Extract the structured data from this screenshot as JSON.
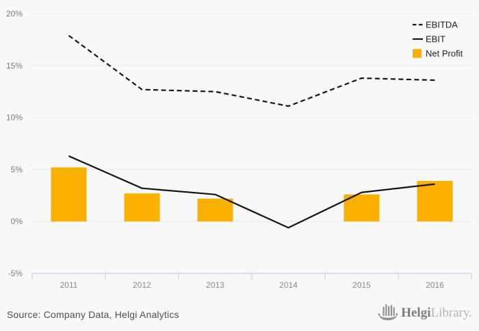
{
  "chart_data": {
    "type": "combo-bar-line",
    "categories": [
      "2011",
      "2012",
      "2013",
      "2014",
      "2015",
      "2016"
    ],
    "series": [
      {
        "name": "EBITDA",
        "type": "line",
        "line_style": "dashed",
        "color": "#141414",
        "values": [
          17.9,
          12.7,
          12.5,
          11.1,
          13.8,
          13.6
        ]
      },
      {
        "name": "EBIT",
        "type": "line",
        "line_style": "solid",
        "color": "#141414",
        "values": [
          6.3,
          3.2,
          2.6,
          -0.6,
          2.8,
          3.6
        ]
      },
      {
        "name": "Net Profit",
        "type": "bar",
        "color": "#F9B000",
        "values": [
          5.2,
          2.7,
          2.2,
          0,
          2.6,
          3.9
        ]
      }
    ],
    "unit": "%",
    "ylim": [
      -5,
      20
    ],
    "ytick_step": 5,
    "ytick_labels": [
      "20%",
      "15%",
      "10%",
      "5%",
      "0%",
      "-5%"
    ],
    "grid": true,
    "legend_position": "top-right"
  },
  "legend": {
    "items": [
      "EBITDA",
      "EBIT",
      "Net Profit"
    ]
  },
  "footer": {
    "source": "Source: Company Data, Helgi Analytics"
  },
  "logo": {
    "brand_bold": "Helgi",
    "brand_light": "Library."
  },
  "colors": {
    "background": "#f8f8f8",
    "grid": "#e7e7e7",
    "axis": "#c9cfdd",
    "y_tick_label": "#7a7a7a",
    "x_tick_label": "#8a8a8a",
    "bar": "#F9B000",
    "line": "#141414",
    "legend_text": "#1d1d1d",
    "source_text": "#4f4f4f",
    "logo_gray": "#909090"
  }
}
